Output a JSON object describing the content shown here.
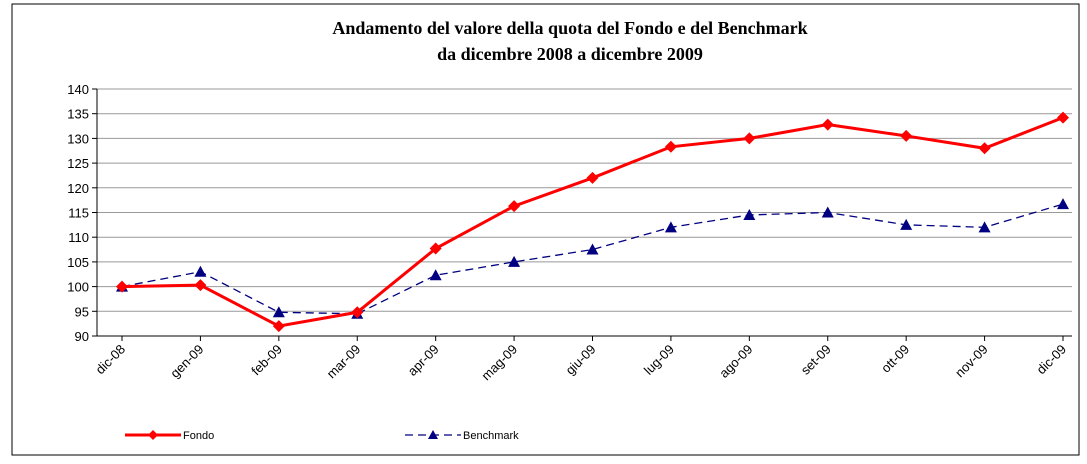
{
  "chart_data": {
    "type": "line",
    "title": "Andamento del valore della quota del Fondo e del Benchmark",
    "subtitle": "da dicembre 2008 a dicembre 2009",
    "categories": [
      "dic-08",
      "gen-09",
      "feb-09",
      "mar-09",
      "apr-09",
      "mag-09",
      "giu-09",
      "lug-09",
      "ago-09",
      "set-09",
      "ott-09",
      "nov-09",
      "dic-09"
    ],
    "series": [
      {
        "name": "Fondo",
        "color": "#ff0000",
        "marker": "diamond",
        "dash": false,
        "values": [
          100,
          100.3,
          92,
          94.8,
          107.7,
          116.3,
          122,
          128.3,
          130,
          132.8,
          130.5,
          128,
          134.2
        ]
      },
      {
        "name": "Benchmark",
        "color": "#000080",
        "marker": "triangle",
        "dash": true,
        "values": [
          100,
          103,
          94.8,
          94.5,
          102.3,
          105,
          107.5,
          112,
          114.5,
          115,
          112.5,
          112,
          116.7
        ]
      }
    ],
    "ylim": [
      90,
      140
    ],
    "yticks": [
      90,
      95,
      100,
      105,
      110,
      115,
      120,
      125,
      130,
      135,
      140
    ],
    "grid": true,
    "legend": "bottom"
  }
}
